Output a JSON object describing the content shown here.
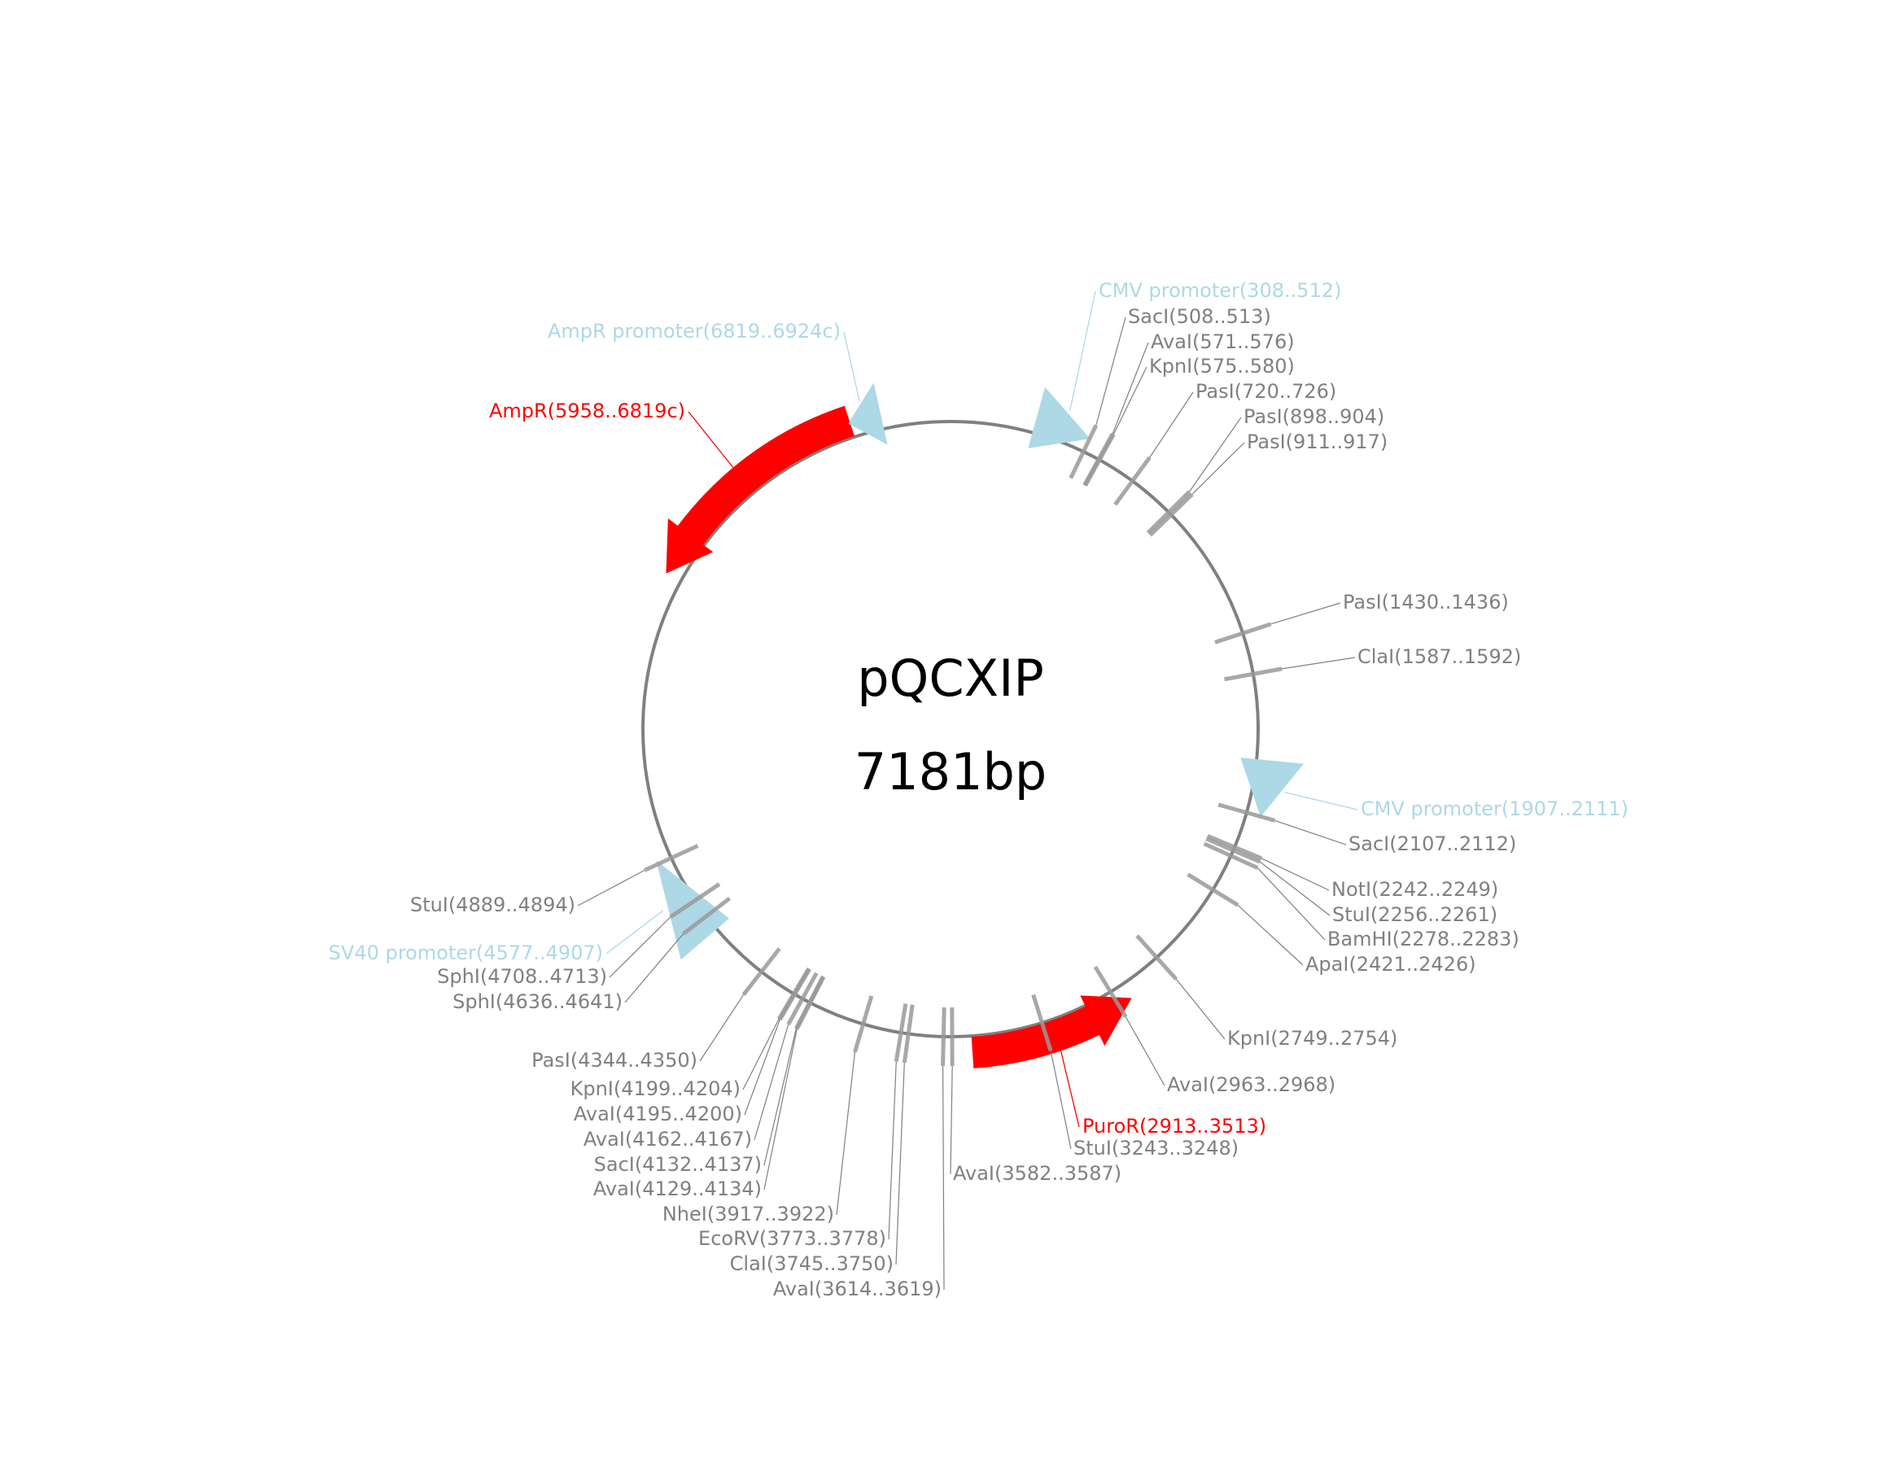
{
  "plasmid": {
    "name": "pQCXIP",
    "length_label": "7181bp",
    "length_bp": 7181
  },
  "colors": {
    "backbone": "#808080",
    "cut_site": "#999999",
    "site_label": "#808080",
    "promoter": "#add8e6",
    "resistance": "#ff0000"
  },
  "features": [
    {
      "name": "CMV promoter",
      "start": 308,
      "end": 512,
      "strand": 1,
      "kind": "promoter",
      "label": "CMV promoter(308..512)"
    },
    {
      "name": "CMV promoter",
      "start": 1907,
      "end": 2111,
      "strand": 1,
      "kind": "promoter",
      "label": "CMV promoter(1907..2111)"
    },
    {
      "name": "PuroR",
      "start": 2913,
      "end": 3513,
      "strand": -1,
      "kind": "resistance",
      "label": "PuroR(2913..3513)"
    },
    {
      "name": "SV40 promoter",
      "start": 4577,
      "end": 4907,
      "strand": 1,
      "kind": "promoter",
      "label": "SV40 promoter(4577..4907)"
    },
    {
      "name": "AmpR",
      "start": 5958,
      "end": 6819,
      "strand": -1,
      "kind": "resistance",
      "label": "AmpR(5958..6819c)"
    },
    {
      "name": "AmpR promoter",
      "start": 6819,
      "end": 6924,
      "strand": -1,
      "kind": "promoter",
      "label": "AmpR promoter(6819..6924c)"
    }
  ],
  "sites": [
    {
      "enzyme": "SacI",
      "start": 508,
      "end": 513,
      "label": "SacI(508..513)"
    },
    {
      "enzyme": "AvaI",
      "start": 571,
      "end": 576,
      "label": "AvaI(571..576)"
    },
    {
      "enzyme": "KpnI",
      "start": 575,
      "end": 580,
      "label": "KpnI(575..580)"
    },
    {
      "enzyme": "PasI",
      "start": 720,
      "end": 726,
      "label": "PasI(720..726)"
    },
    {
      "enzyme": "PasI",
      "start": 898,
      "end": 904,
      "label": "PasI(898..904)"
    },
    {
      "enzyme": "PasI",
      "start": 911,
      "end": 917,
      "label": "PasI(911..917)"
    },
    {
      "enzyme": "PasI",
      "start": 1430,
      "end": 1436,
      "label": "PasI(1430..1436)"
    },
    {
      "enzyme": "ClaI",
      "start": 1587,
      "end": 1592,
      "label": "ClaI(1587..1592)"
    },
    {
      "enzyme": "SacI",
      "start": 2107,
      "end": 2112,
      "label": "SacI(2107..2112)"
    },
    {
      "enzyme": "NotI",
      "start": 2242,
      "end": 2249,
      "label": "NotI(2242..2249)"
    },
    {
      "enzyme": "StuI",
      "start": 2256,
      "end": 2261,
      "label": "StuI(2256..2261)"
    },
    {
      "enzyme": "BamHI",
      "start": 2278,
      "end": 2283,
      "label": "BamHI(2278..2283)"
    },
    {
      "enzyme": "ApaI",
      "start": 2421,
      "end": 2426,
      "label": "ApaI(2421..2426)"
    },
    {
      "enzyme": "KpnI",
      "start": 2749,
      "end": 2754,
      "label": "KpnI(2749..2754)"
    },
    {
      "enzyme": "AvaI",
      "start": 2963,
      "end": 2968,
      "label": "AvaI(2963..2968)"
    },
    {
      "enzyme": "StuI",
      "start": 3243,
      "end": 3248,
      "label": "StuI(3243..3248)"
    },
    {
      "enzyme": "AvaI",
      "start": 3582,
      "end": 3587,
      "label": "AvaI(3582..3587)"
    },
    {
      "enzyme": "AvaI",
      "start": 3614,
      "end": 3619,
      "label": "AvaI(3614..3619)"
    },
    {
      "enzyme": "ClaI",
      "start": 3745,
      "end": 3750,
      "label": "ClaI(3745..3750)"
    },
    {
      "enzyme": "EcoRV",
      "start": 3773,
      "end": 3778,
      "label": "EcoRV(3773..3778)"
    },
    {
      "enzyme": "NheI",
      "start": 3917,
      "end": 3922,
      "label": "NheI(3917..3922)"
    },
    {
      "enzyme": "AvaI",
      "start": 4129,
      "end": 4134,
      "label": "AvaI(4129..4134)"
    },
    {
      "enzyme": "SacI",
      "start": 4132,
      "end": 4137,
      "label": "SacI(4132..4137)"
    },
    {
      "enzyme": "AvaI",
      "start": 4162,
      "end": 4167,
      "label": "AvaI(4162..4167)"
    },
    {
      "enzyme": "AvaI",
      "start": 4195,
      "end": 4200,
      "label": "AvaI(4195..4200)"
    },
    {
      "enzyme": "KpnI",
      "start": 4199,
      "end": 4204,
      "label": "KpnI(4199..4204)"
    },
    {
      "enzyme": "PasI",
      "start": 4344,
      "end": 4350,
      "label": "PasI(4344..4350)"
    },
    {
      "enzyme": "SphI",
      "start": 4636,
      "end": 4641,
      "label": "SphI(4636..4641)"
    },
    {
      "enzyme": "SphI",
      "start": 4708,
      "end": 4713,
      "label": "SphI(4708..4713)"
    },
    {
      "enzyme": "StuI",
      "start": 4889,
      "end": 4894,
      "label": "StuI(4889..4894)"
    }
  ]
}
